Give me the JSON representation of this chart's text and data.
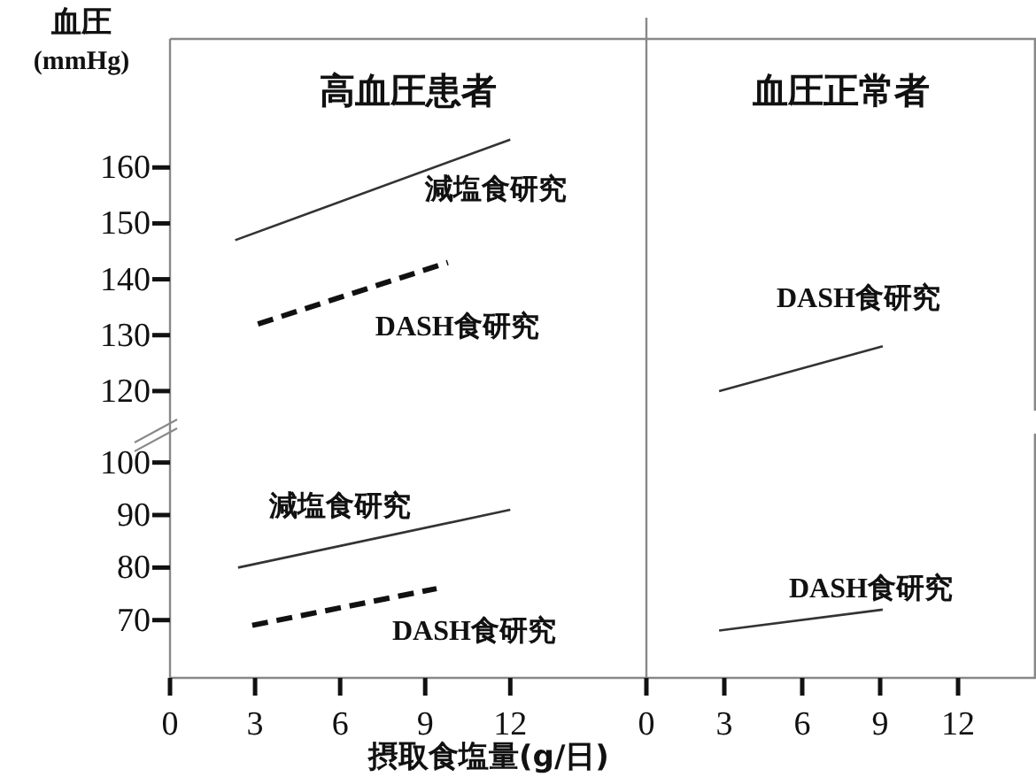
{
  "chart_data": [
    {
      "type": "line",
      "title": "高血圧患者",
      "ylabel": "血圧\n(mmHg)",
      "xlim": [
        0,
        16.8
      ],
      "ylim": [
        116.5,
        183
      ],
      "yticks": [
        120,
        130,
        140,
        150,
        160
      ],
      "tick_labels": "y",
      "series": [
        {
          "name": "減塩食研究",
          "color": "#333333",
          "line_style": "solid",
          "x": [
            2.3,
            12
          ],
          "values": [
            147,
            165
          ]
        },
        {
          "name": "DASH食研究",
          "color": "#111111",
          "line_style": "dashed",
          "x": [
            3.1,
            9.8
          ],
          "values": [
            132,
            143
          ]
        }
      ]
    },
    {
      "type": "line",
      "xlabel": "摂取食塩量(g/日)",
      "xlim": [
        0,
        16.8
      ],
      "ylim": [
        59,
        105.5
      ],
      "xticks": [
        0,
        3,
        6,
        9,
        12
      ],
      "yticks": [
        70,
        80,
        90,
        100
      ],
      "series": [
        {
          "name": "減塩食研究",
          "color": "#333333",
          "line_style": "solid",
          "x": [
            2.4,
            12
          ],
          "values": [
            80,
            91
          ]
        },
        {
          "name": "DASH食研究",
          "color": "#111111",
          "line_style": "dashed",
          "x": [
            2.9,
            9.4
          ],
          "values": [
            69,
            76
          ]
        }
      ]
    },
    {
      "type": "line",
      "title": "血圧正常者",
      "xlim": [
        0,
        15
      ],
      "ylim": [
        116.5,
        183
      ],
      "series": [
        {
          "name": "DASH食研究",
          "color": "#333333",
          "line_style": "solid",
          "x": [
            2.8,
            9.1
          ],
          "values": [
            120,
            128
          ]
        }
      ]
    },
    {
      "type": "line",
      "xlim": [
        0,
        15
      ],
      "ylim": [
        59,
        105.5
      ],
      "xticks": [
        0,
        3,
        6,
        9,
        12
      ],
      "tick_labels": "x",
      "series": [
        {
          "name": "DASH食研究",
          "color": "#333333",
          "line_style": "solid",
          "x": [
            2.8,
            9.1
          ],
          "values": [
            68,
            72
          ]
        }
      ]
    }
  ]
}
